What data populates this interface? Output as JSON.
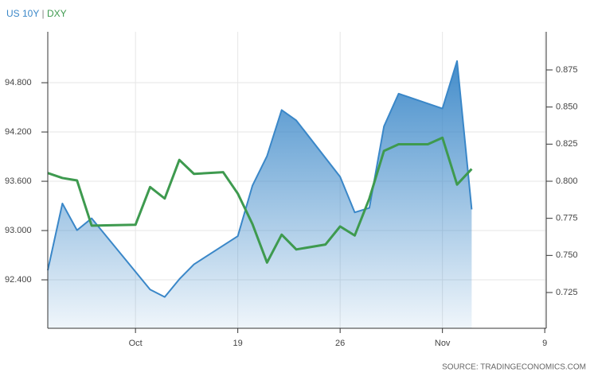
{
  "chart_data": {
    "type": "line",
    "source": "SOURCE: TRADINGECONOMICS.COM",
    "xlim": [
      6,
      40.1
    ],
    "xticks": [
      {
        "value": 12,
        "label": "Oct"
      },
      19,
      26,
      {
        "value": 33,
        "label": "Nov"
      },
      {
        "value": 40,
        "label": "9"
      }
    ],
    "ylim": [
      91.81,
      95.42
    ],
    "yticks": [
      {
        "value": 92.4,
        "label": "92.400"
      },
      {
        "value": 93.0,
        "label": "93.000"
      },
      {
        "value": 93.6,
        "label": "93.600"
      },
      {
        "value": 94.2,
        "label": "94.200"
      },
      {
        "value": 94.8,
        "label": "94.800"
      }
    ],
    "y2lim": [
      0.7009,
      0.9007
    ],
    "y2ticks": [
      0.725,
      {
        "value": 0.75,
        "label": "0.750"
      },
      0.775,
      {
        "value": 0.8,
        "label": "0.800"
      },
      0.825,
      {
        "value": 0.85,
        "label": "0.850"
      },
      0.875
    ],
    "grid": true,
    "series": [
      {
        "name": "US 10Y",
        "color": "#3a87c8",
        "axis": "y2",
        "area": true,
        "x": [
          6,
          7,
          8,
          9,
          13,
          14,
          15,
          16,
          19,
          20,
          21,
          22,
          23,
          26,
          27,
          28,
          29,
          30,
          33,
          34,
          35
        ],
        "values": [
          0.74,
          0.785,
          0.767,
          0.775,
          0.727,
          0.722,
          0.734,
          0.744,
          0.763,
          0.797,
          0.817,
          0.848,
          0.841,
          0.803,
          0.779,
          0.782,
          0.837,
          0.859,
          0.849,
          0.881,
          0.781
        ]
      },
      {
        "name": "DXY",
        "color": "#3e9a4f",
        "x": [
          6,
          7,
          8,
          9,
          12,
          13,
          14,
          15,
          16,
          18,
          19,
          20,
          21,
          22,
          23,
          25,
          26,
          27,
          28,
          29,
          30,
          32,
          33,
          34,
          35
        ],
        "values": [
          93.7,
          93.64,
          93.61,
          93.06,
          93.07,
          93.53,
          93.39,
          93.86,
          93.69,
          93.71,
          93.45,
          93.08,
          92.61,
          92.95,
          92.77,
          92.83,
          93.05,
          92.94,
          93.39,
          93.97,
          94.05,
          94.05,
          94.13,
          93.56,
          93.75
        ]
      }
    ]
  }
}
